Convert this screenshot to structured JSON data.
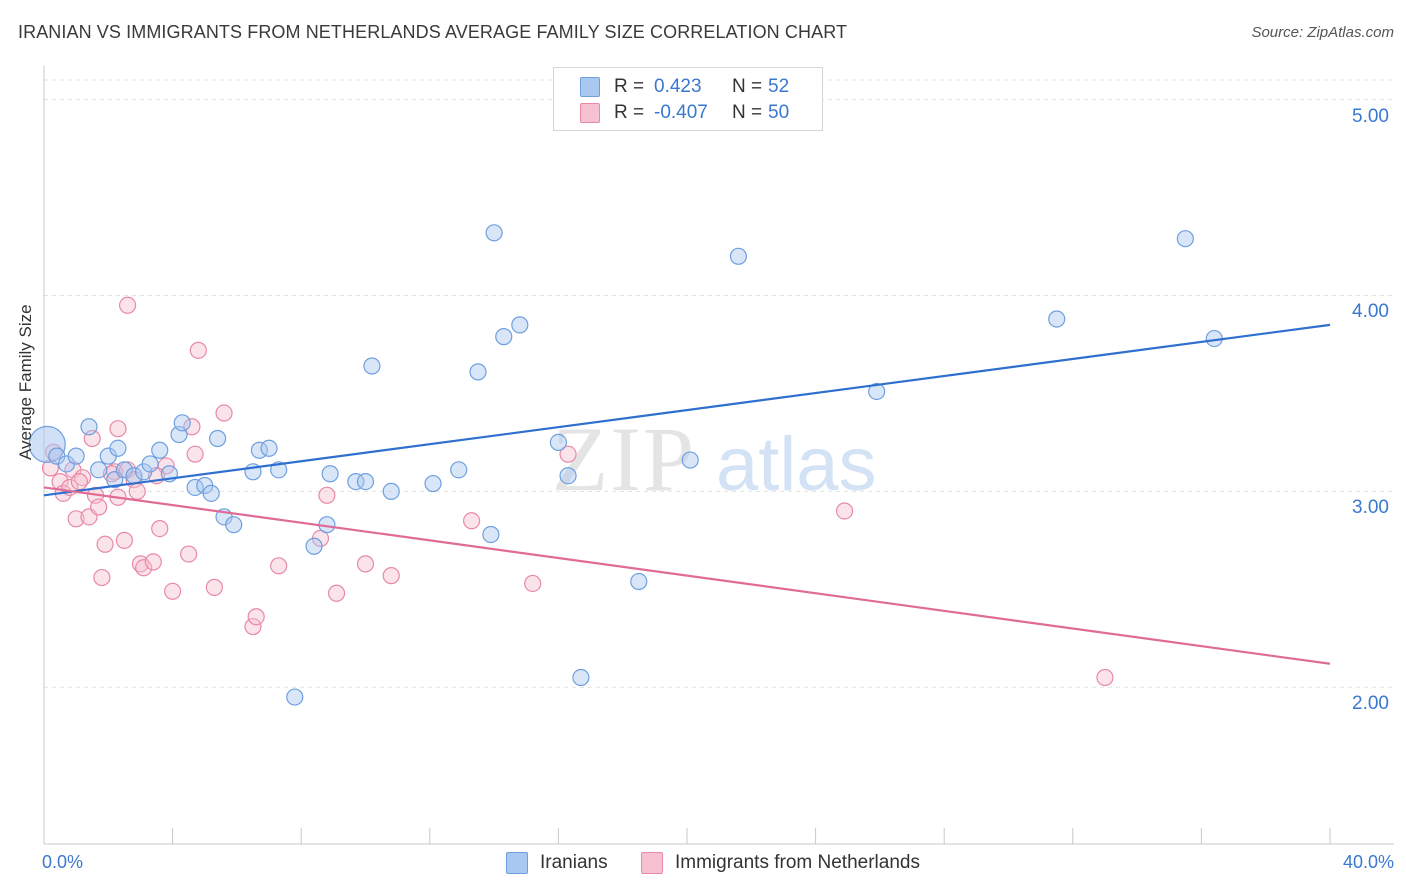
{
  "title": "IRANIAN VS IMMIGRANTS FROM NETHERLANDS AVERAGE FAMILY SIZE CORRELATION CHART",
  "source": "Source: ZipAtlas.com",
  "watermark": {
    "zip": "ZIP",
    "atlas": "atlas"
  },
  "legend": {
    "rows": [
      {
        "r_label": "R =",
        "r_value": "0.423",
        "n_label": "N =",
        "n_value": "52",
        "color": "#a9c8f0",
        "border": "#6f9fe0"
      },
      {
        "r_label": "R =",
        "r_value": "-0.407",
        "n_label": "N =",
        "n_value": "50",
        "color": "#f6c1d1",
        "border": "#e889a7"
      }
    ]
  },
  "bottom_legend": [
    "Iranians",
    "Immigrants from Netherlands"
  ],
  "chart_data": {
    "type": "scatter",
    "xlabel": "",
    "ylabel": "Average Family Size",
    "xlim": [
      0,
      40
    ],
    "ylim": [
      1.2,
      5.1
    ],
    "x_tick_labels": [
      "0.0%",
      "40.0%"
    ],
    "y_ticks": [
      {
        "value": 2.0,
        "label": "2.00"
      },
      {
        "value": 3.0,
        "label": "3.00"
      },
      {
        "value": 4.0,
        "label": "4.00"
      },
      {
        "value": 5.0,
        "label": "5.00"
      }
    ],
    "grid": true,
    "legend_position": "top-center",
    "series": [
      {
        "name": "Iranians",
        "color": "#6f9fe0",
        "fill": "#a9c8f0",
        "trend": {
          "x0": 0,
          "y0": 2.98,
          "x1": 40,
          "y1": 3.85
        },
        "points": [
          [
            0.1,
            3.24
          ],
          [
            0.4,
            3.18
          ],
          [
            0.7,
            3.14
          ],
          [
            1.0,
            3.18
          ],
          [
            1.4,
            3.33
          ],
          [
            1.7,
            3.11
          ],
          [
            2.0,
            3.18
          ],
          [
            2.2,
            3.06
          ],
          [
            2.3,
            3.22
          ],
          [
            2.5,
            3.11
          ],
          [
            2.8,
            3.08
          ],
          [
            3.1,
            3.1
          ],
          [
            3.3,
            3.14
          ],
          [
            3.6,
            3.21
          ],
          [
            3.9,
            3.09
          ],
          [
            4.2,
            3.29
          ],
          [
            4.3,
            3.35
          ],
          [
            4.7,
            3.02
          ],
          [
            5.0,
            3.03
          ],
          [
            5.2,
            2.99
          ],
          [
            5.4,
            3.27
          ],
          [
            5.6,
            2.87
          ],
          [
            5.9,
            2.83
          ],
          [
            6.5,
            3.1
          ],
          [
            6.7,
            3.21
          ],
          [
            7.0,
            3.22
          ],
          [
            7.3,
            3.11
          ],
          [
            7.8,
            1.95
          ],
          [
            8.4,
            2.72
          ],
          [
            8.8,
            2.83
          ],
          [
            8.9,
            3.09
          ],
          [
            9.7,
            3.05
          ],
          [
            10.0,
            3.05
          ],
          [
            10.2,
            3.64
          ],
          [
            10.8,
            3.0
          ],
          [
            12.1,
            3.04
          ],
          [
            12.9,
            3.11
          ],
          [
            13.5,
            3.61
          ],
          [
            13.9,
            2.78
          ],
          [
            14.0,
            4.32
          ],
          [
            14.3,
            3.79
          ],
          [
            14.8,
            3.85
          ],
          [
            16.0,
            3.25
          ],
          [
            16.3,
            3.08
          ],
          [
            16.7,
            2.05
          ],
          [
            18.5,
            2.54
          ],
          [
            20.1,
            3.16
          ],
          [
            21.6,
            4.2
          ],
          [
            25.9,
            3.51
          ],
          [
            31.5,
            3.88
          ],
          [
            35.5,
            4.29
          ],
          [
            36.4,
            3.78
          ]
        ]
      },
      {
        "name": "Immigrants from Netherlands",
        "color": "#e889a7",
        "fill": "#f6c1d1",
        "trend": {
          "x0": 0,
          "y0": 3.02,
          "x1": 40,
          "y1": 2.12
        },
        "points": [
          [
            0.2,
            3.12
          ],
          [
            0.5,
            3.05
          ],
          [
            0.6,
            2.99
          ],
          [
            0.8,
            3.02
          ],
          [
            0.9,
            3.11
          ],
          [
            1.0,
            2.86
          ],
          [
            1.2,
            3.07
          ],
          [
            1.4,
            2.87
          ],
          [
            1.5,
            3.27
          ],
          [
            1.6,
            2.98
          ],
          [
            1.7,
            2.92
          ],
          [
            1.8,
            2.56
          ],
          [
            1.9,
            2.73
          ],
          [
            2.2,
            3.1
          ],
          [
            2.1,
            3.09
          ],
          [
            2.3,
            3.32
          ],
          [
            2.3,
            2.97
          ],
          [
            2.5,
            2.75
          ],
          [
            2.6,
            3.11
          ],
          [
            2.6,
            3.95
          ],
          [
            2.8,
            3.06
          ],
          [
            2.9,
            3.0
          ],
          [
            3.0,
            2.63
          ],
          [
            3.1,
            2.61
          ],
          [
            3.4,
            2.64
          ],
          [
            3.6,
            2.81
          ],
          [
            3.8,
            3.13
          ],
          [
            4.0,
            2.49
          ],
          [
            4.5,
            2.68
          ],
          [
            4.6,
            3.33
          ],
          [
            4.7,
            3.19
          ],
          [
            4.8,
            3.72
          ],
          [
            5.3,
            2.51
          ],
          [
            5.6,
            3.4
          ],
          [
            6.5,
            2.31
          ],
          [
            6.6,
            2.36
          ],
          [
            7.3,
            2.62
          ],
          [
            8.6,
            2.76
          ],
          [
            8.8,
            2.98
          ],
          [
            9.1,
            2.48
          ],
          [
            10.0,
            2.63
          ],
          [
            10.8,
            2.57
          ],
          [
            13.3,
            2.85
          ],
          [
            15.2,
            2.53
          ],
          [
            16.3,
            3.19
          ],
          [
            24.9,
            2.9
          ],
          [
            33.0,
            2.05
          ],
          [
            0.3,
            3.2
          ],
          [
            1.1,
            3.05
          ],
          [
            3.5,
            3.08
          ]
        ]
      }
    ]
  }
}
